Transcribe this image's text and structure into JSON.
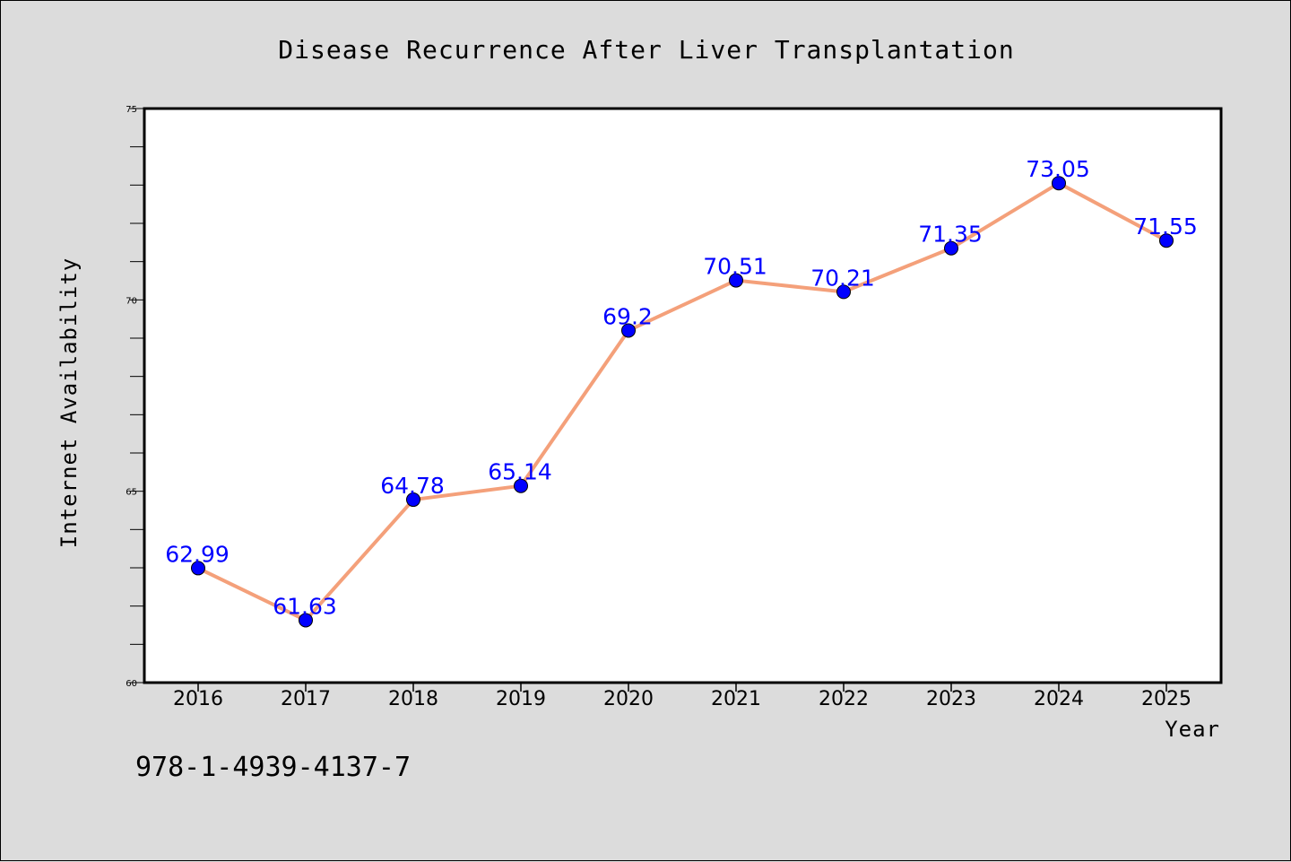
{
  "chart_data": {
    "type": "line",
    "title": "Disease Recurrence After Liver Transplantation",
    "xlabel": "Year",
    "ylabel": "Internet Availability",
    "categories": [
      "2016",
      "2017",
      "2018",
      "2019",
      "2020",
      "2021",
      "2022",
      "2023",
      "2024",
      "2025"
    ],
    "values": [
      62.99,
      61.63,
      64.78,
      65.14,
      69.2,
      70.51,
      70.21,
      71.35,
      73.05,
      71.55
    ],
    "data_labels": [
      "62.99",
      "61.63",
      "64.78",
      "65.14",
      "69.2",
      "70.51",
      "70.21",
      "71.35",
      "73.05",
      "71.55"
    ],
    "ylim": [
      60,
      75
    ],
    "yticks": [
      "60",
      "65",
      "70",
      "75"
    ],
    "yticks_minor_step": 1,
    "grid": false,
    "legend": "none",
    "line_color": "#f4a07a",
    "marker_color": "#0000ff",
    "label_color": "#0000ff",
    "plot_background": "#ffffff",
    "figure_background": "#dcdcdc"
  },
  "footnote": "978-1-4939-4137-7"
}
